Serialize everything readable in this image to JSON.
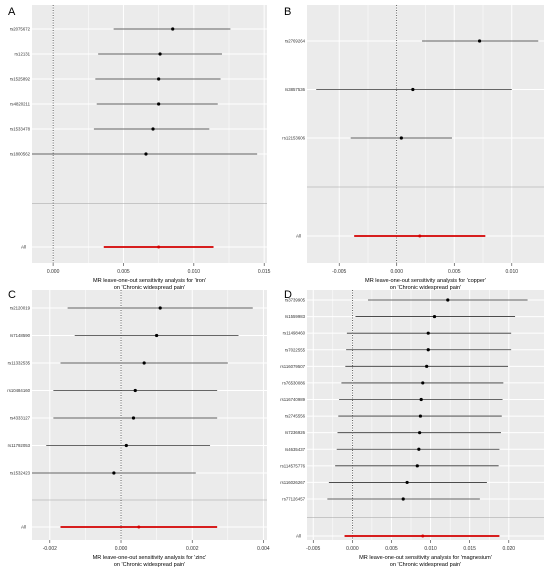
{
  "colors": {
    "panel_bg": "#ebebeb",
    "grid": "#ffffff",
    "ci_line": "#333333",
    "point": "#000000",
    "overall": "#d40000",
    "separator": "#a0a0a0",
    "text": "#333333"
  },
  "chart_data": [
    {
      "panel": "A",
      "type": "forest",
      "xlabel": "MR leave-one-out sensitivity analysis for 'iron'",
      "xlabel2": "on 'Chronic widespread pain'",
      "xlim": [
        -0.0015,
        0.0152
      ],
      "xticks": [
        0.0,
        0.005,
        0.01,
        0.015
      ],
      "xtick_labels": [
        "0.000",
        "0.005",
        "0.010",
        "0.015"
      ],
      "zero_line": 0,
      "grid": true,
      "snps": [
        "rs2075672",
        "rs12131",
        "rs1525892",
        "rs4820211",
        "rs1533478",
        "rs1800562"
      ],
      "estimates": [
        0.0085,
        0.0076,
        0.0075,
        0.0075,
        0.0071,
        0.0066
      ],
      "ci_low": [
        0.0043,
        0.0032,
        0.003,
        0.0031,
        0.0029,
        -0.0015
      ],
      "ci_high": [
        0.0126,
        0.012,
        0.0119,
        0.0117,
        0.0111,
        0.0145
      ],
      "overall_label": "All",
      "overall": {
        "estimate": 0.0075,
        "ci_low": 0.0036,
        "ci_high": 0.0114
      }
    },
    {
      "panel": "B",
      "type": "forest",
      "xlabel": "MR leave-one-out sensitivity analysis for 'copper'",
      "xlabel2": "on 'Chronic widespread pain'",
      "xlim": [
        -0.0078,
        0.0128
      ],
      "xticks": [
        -0.005,
        0.0,
        0.005,
        0.01
      ],
      "xtick_labels": [
        "-0.005",
        "0.000",
        "0.005",
        "0.010"
      ],
      "zero_line": 0,
      "grid": true,
      "snps": [
        "rs2769264",
        "rs3857536",
        "rs12153606"
      ],
      "estimates": [
        0.0072,
        0.0014,
        0.0004
      ],
      "ci_low": [
        0.0022,
        -0.007,
        -0.004
      ],
      "ci_high": [
        0.0123,
        0.01,
        0.0048
      ],
      "overall_label": "All",
      "overall": {
        "estimate": 0.002,
        "ci_low": -0.0037,
        "ci_high": 0.0077
      }
    },
    {
      "panel": "C",
      "type": "forest",
      "xlabel": "MR leave-one-out sensitivity analysis for 'zinc'",
      "xlabel2": "on 'Chronic widespread pain'",
      "xlim": [
        -0.0025,
        0.0041
      ],
      "xticks": [
        -0.002,
        0.0,
        0.002,
        0.004
      ],
      "xtick_labels": [
        "-0.002",
        "0.000",
        "0.002",
        "0.004"
      ],
      "zero_line": 0,
      "grid": true,
      "snps": [
        "rs2120019",
        "rs7148590",
        "rs11332535",
        "rs10484160",
        "rs4333127",
        "rs11792053",
        "rs1532423"
      ],
      "estimates": [
        0.0011,
        0.001,
        0.00065,
        0.0004,
        0.00035,
        0.00015,
        -0.0002
      ],
      "ci_low": [
        -0.0015,
        -0.0013,
        -0.0017,
        -0.0019,
        -0.0019,
        -0.0021,
        -0.0025
      ],
      "ci_high": [
        0.0037,
        0.0033,
        0.003,
        0.0027,
        0.0027,
        0.0025,
        0.0021
      ],
      "overall_label": "All",
      "overall": {
        "estimate": 0.0005,
        "ci_low": -0.0017,
        "ci_high": 0.0027
      }
    },
    {
      "panel": "D",
      "type": "forest",
      "xlabel": "MR leave-one-out sensitivity analysis for 'magnesium'",
      "xlabel2": "on 'Chronic widespread pain'",
      "xlim": [
        -0.0058,
        0.0245
      ],
      "xticks": [
        -0.005,
        0.0,
        0.005,
        0.01,
        0.015,
        0.02
      ],
      "xtick_labels": [
        "-0.005",
        "0.000",
        "0.005",
        "0.010",
        "0.015",
        "0.020"
      ],
      "zero_line": 0,
      "grid": true,
      "snps": [
        "rs3739905",
        "rs1559983",
        "rs11498460",
        "rs7022555",
        "rs116079507",
        "rs76530086",
        "rs116740989",
        "rs2745556",
        "rs7236926",
        "rs4635437",
        "rs114575776",
        "rs116026267",
        "rs77126457"
      ],
      "estimates": [
        0.0122,
        0.0105,
        0.0097,
        0.0097,
        0.0095,
        0.009,
        0.0088,
        0.0087,
        0.0086,
        0.0085,
        0.0083,
        0.007,
        0.0065
      ],
      "ci_low": [
        0.002,
        0.0004,
        -0.0007,
        -0.0008,
        -0.0009,
        -0.0014,
        -0.0017,
        -0.0018,
        -0.0019,
        -0.002,
        -0.0022,
        -0.003,
        -0.0032
      ],
      "ci_high": [
        0.0224,
        0.0208,
        0.0203,
        0.0203,
        0.0199,
        0.0193,
        0.0192,
        0.0191,
        0.019,
        0.0188,
        0.0187,
        0.0172,
        0.0163
      ],
      "overall_label": "All",
      "overall": {
        "estimate": 0.009,
        "ci_low": -0.001,
        "ci_high": 0.0188
      }
    }
  ]
}
